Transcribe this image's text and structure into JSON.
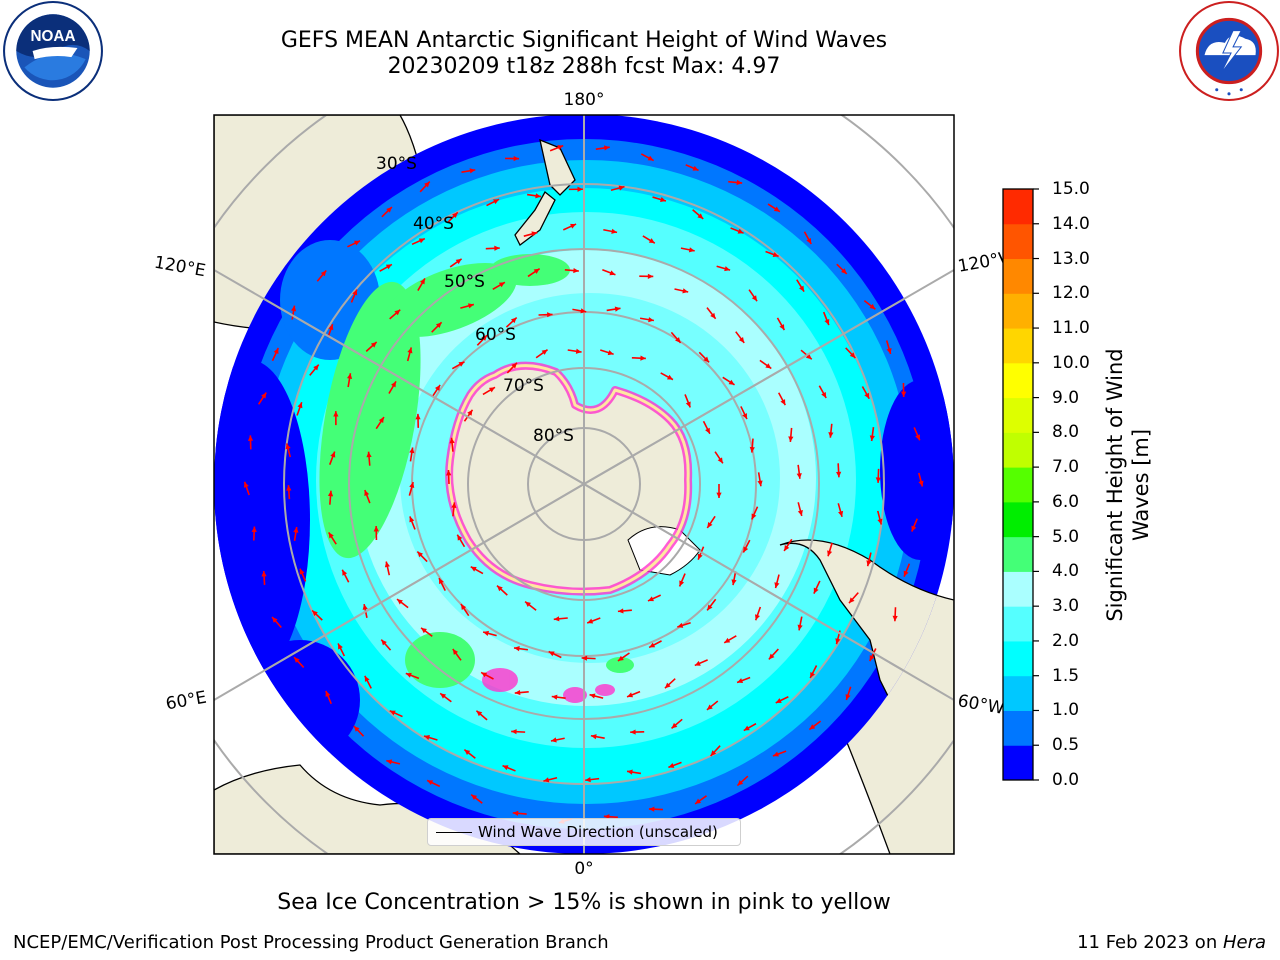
{
  "header": {
    "title_line1": "GEFS MEAN Antarctic Significant Height of Wind Waves",
    "title_line2": "20230209 t18z 288h fcst   Max: 4.97"
  },
  "logos": {
    "left": "NOAA",
    "left_ring_text": "NATIONAL OCEANIC AND ATMOSPHERIC ADMINISTRATION",
    "left_bottom_text": "U.S. DEPARTMENT OF COMMERCE",
    "right_ring_text": "NATIONAL WEATHER SERVICE"
  },
  "map": {
    "projection": "south-polar-stereographic",
    "longitude_labels": {
      "top": "180°",
      "bottom": "0°",
      "upper_left": "120°E",
      "lower_left": "60°E",
      "upper_right": "120°W",
      "lower_right": "60°W"
    },
    "latitude_labels": [
      "30°S",
      "40°S",
      "50°S",
      "60°S",
      "70°S",
      "80°S"
    ],
    "legend_label": "Wind Wave Direction (unscaled)",
    "arrow_color": "#ff0000",
    "land_color": "#eeecd9"
  },
  "colorbar": {
    "title_line1": "Significant Height of Wind",
    "title_line2": "Waves [m]",
    "ticks": [
      "0.0",
      "0.5",
      "1.0",
      "1.5",
      "2.0",
      "3.0",
      "4.0",
      "5.0",
      "6.0",
      "7.0",
      "8.0",
      "9.0",
      "10.0",
      "11.0",
      "12.0",
      "13.0",
      "14.0",
      "15.0"
    ],
    "colors": [
      "#0000ff",
      "#0077ff",
      "#00c8ff",
      "#00ffff",
      "#55ffff",
      "#aaffff",
      "#44ff77",
      "#00ee00",
      "#55ff00",
      "#c0ff00",
      "#ddff00",
      "#ffff00",
      "#ffd600",
      "#ffb000",
      "#ff8800",
      "#ff5500",
      "#ff2a00"
    ]
  },
  "caption": "Sea Ice Concentration > 15% is shown in pink to yellow",
  "footer": {
    "left": "NCEP/EMC/Verification Post Processing Product Generation Branch",
    "right_prefix": "11 Feb 2023 on ",
    "right_host": "Hera"
  }
}
